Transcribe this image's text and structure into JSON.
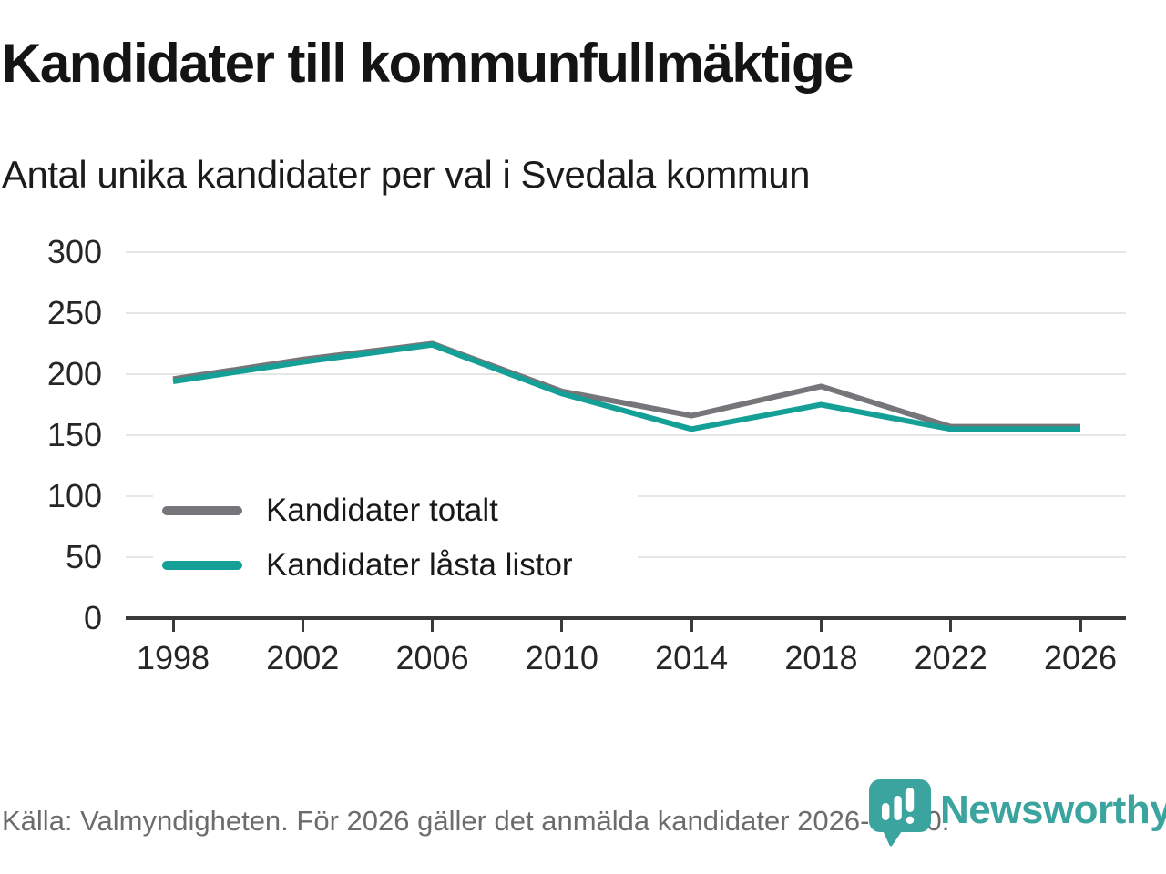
{
  "header": {
    "title": "Kandidater till kommunfullmäktige",
    "subtitle": "Antal unika kandidater per val i Svedala kommun"
  },
  "chart_data": {
    "type": "line",
    "title": "Kandidater till kommunfullmäktige",
    "subtitle": "Antal unika kandidater per val i Svedala kommun",
    "x": [
      1998,
      2002,
      2006,
      2010,
      2014,
      2018,
      2022,
      2026
    ],
    "series": [
      {
        "name": "Kandidater totalt",
        "color": "#76767a",
        "values": [
          196,
          212,
          225,
          186,
          166,
          190,
          157,
          157
        ]
      },
      {
        "name": "Kandidater låsta listor",
        "color": "#14a096",
        "values": [
          194,
          210,
          224,
          184,
          155,
          175,
          155,
          155
        ]
      }
    ],
    "xlabel": "",
    "ylabel": "",
    "yticks": [
      0,
      50,
      100,
      150,
      200,
      250,
      300
    ],
    "ylim": [
      0,
      300
    ],
    "grid": true,
    "legend_position": "inside-left",
    "gridline_color": "#e6e6e6",
    "axis_color": "#3a3a3c"
  },
  "footer": {
    "source": "Källa: Valmyndigheten. För 2026 gäller det anmälda kandidater 2026-04-10.",
    "brand": "Newsworthy",
    "brand_color": "#3ca49e"
  }
}
